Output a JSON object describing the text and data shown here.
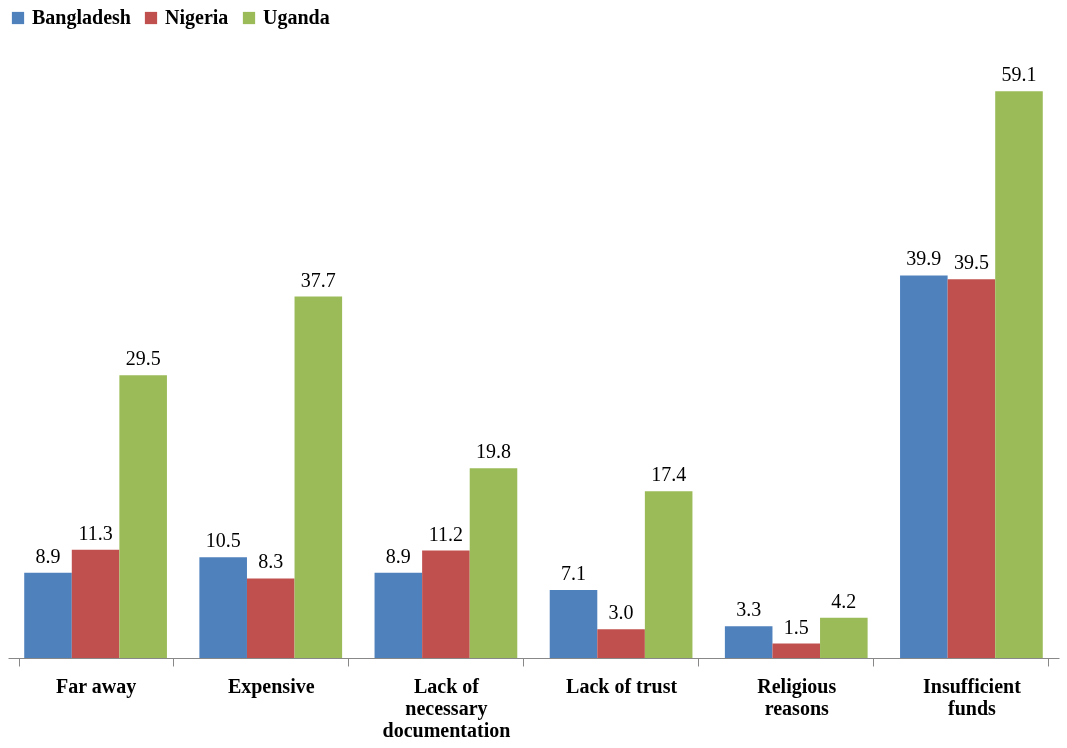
{
  "chart_data": {
    "type": "bar",
    "categories": [
      "Far away",
      "Expensive",
      "Lack of necessary documentation",
      "Lack of trust",
      "Religious reasons",
      "Insufficient funds"
    ],
    "series": [
      {
        "name": "Bangladesh",
        "color": "#4f81bd",
        "values": [
          8.9,
          10.5,
          8.9,
          7.1,
          3.3,
          39.9
        ],
        "value_labels": [
          "8.9",
          "10.5",
          "8.9",
          "7.1",
          "3.3",
          "39.9"
        ]
      },
      {
        "name": "Nigeria",
        "color": "#c0504d",
        "values": [
          11.3,
          8.3,
          11.2,
          3.0,
          1.5,
          39.5
        ],
        "value_labels": [
          "11.3",
          "8.3",
          "11.2",
          "3.0",
          "1.5",
          "39.5"
        ]
      },
      {
        "name": "Uganda",
        "color": "#9bbb59",
        "values": [
          29.5,
          37.7,
          19.8,
          17.4,
          4.2,
          59.1
        ],
        "value_labels": [
          "29.5",
          "37.7",
          "19.8",
          "17.4",
          "4.2",
          "59.1"
        ]
      }
    ],
    "legend": "top",
    "grid": false
  }
}
